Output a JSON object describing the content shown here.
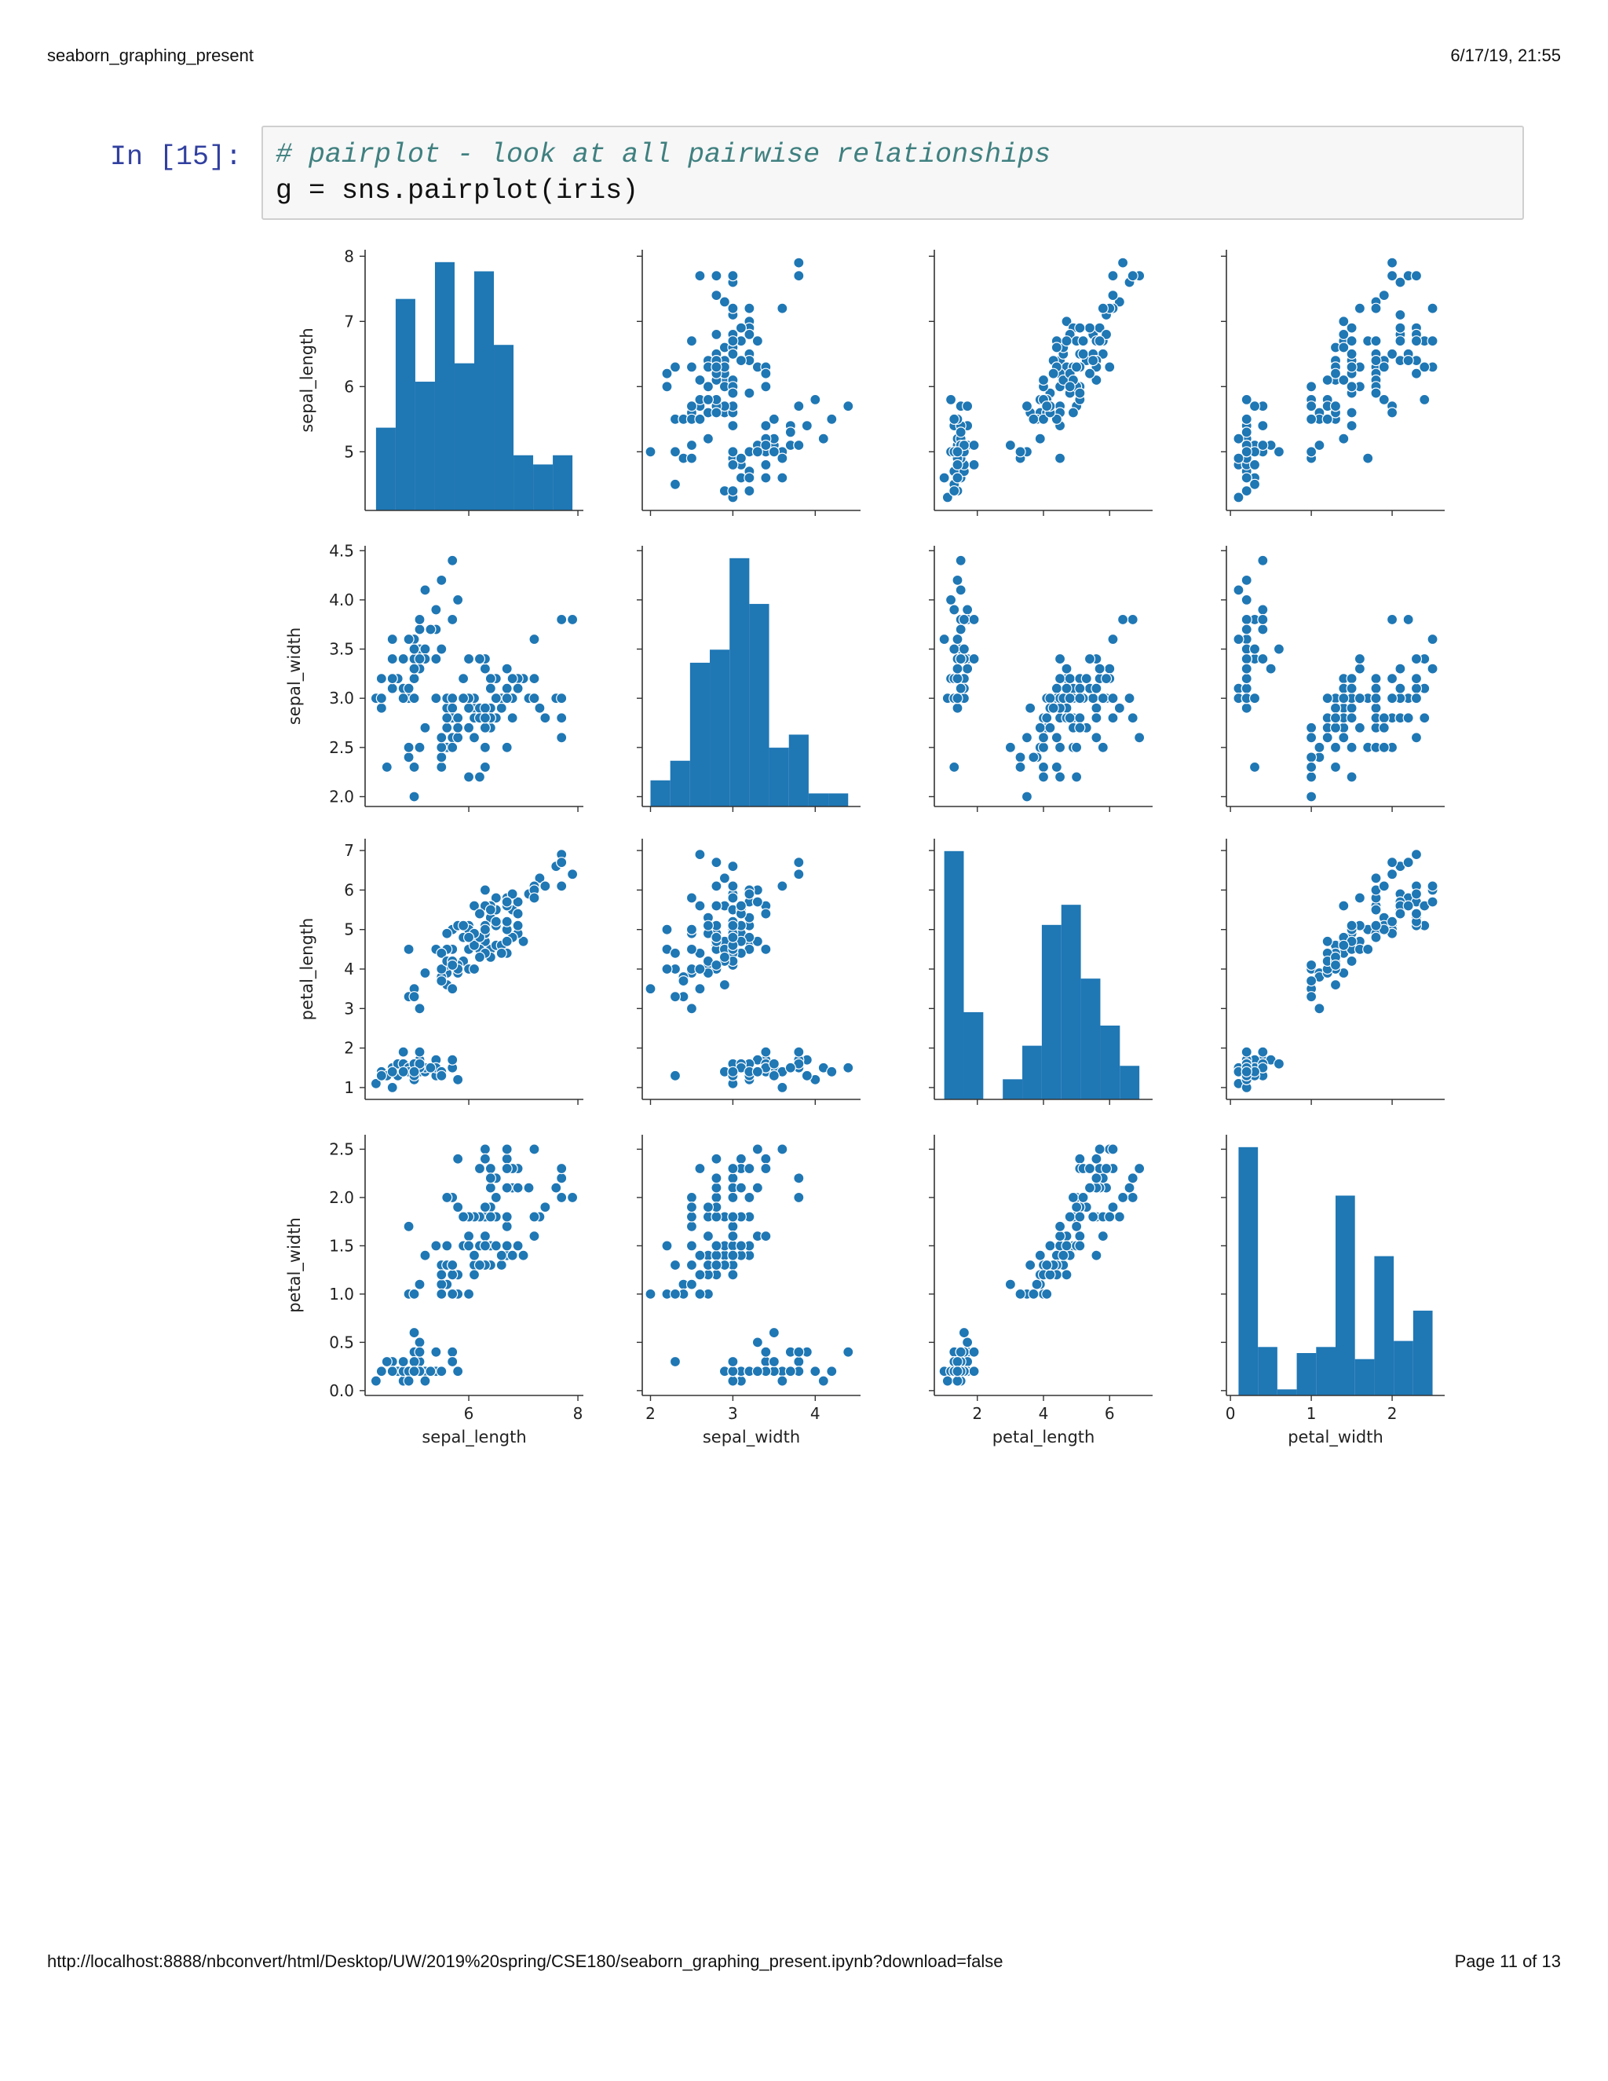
{
  "page": {
    "header_left": "seaborn_graphing_present",
    "header_right": "6/17/19, 21:55",
    "footer_left": "http://localhost:8888/nbconvert/html/Desktop/UW/2019%20spring/CSE180/seaborn_graphing_present.ipynb?download=false",
    "footer_right": "Page 11 of 13"
  },
  "cell": {
    "prompt": "In [15]:",
    "comment": "# pairplot - look at all pairwise relationships",
    "code": "g = sns.pairplot(iris)"
  },
  "colors": {
    "mark": "#1f77b4",
    "axis": "#333333",
    "cell_bg": "#f7f7f7",
    "prompt": "#303f9f",
    "comment": "#408080"
  },
  "chart_data": {
    "type": "scatter",
    "variables": [
      "sepal_length",
      "sepal_width",
      "petal_length",
      "petal_width"
    ],
    "axes": {
      "sepal_length": {
        "range": [
          4.1,
          8.1
        ],
        "ticks": [
          5,
          6,
          7,
          8
        ],
        "tick_labels": [
          "5",
          "6",
          "7",
          "8"
        ]
      },
      "sepal_width": {
        "range": [
          1.9,
          4.55
        ],
        "ticks": [
          2.0,
          2.5,
          3.0,
          3.5,
          4.0,
          4.5
        ],
        "tick_labels": [
          "2.0",
          "2.5",
          "3.0",
          "3.5",
          "4.0",
          "4.5"
        ]
      },
      "petal_length": {
        "range": [
          0.7,
          7.3
        ],
        "ticks": [
          1,
          2,
          3,
          4,
          5,
          6,
          7
        ],
        "tick_labels": [
          "1",
          "2",
          "3",
          "4",
          "5",
          "6",
          "7"
        ]
      },
      "petal_width": {
        "range": [
          -0.05,
          2.65
        ],
        "ticks": [
          0.0,
          0.5,
          1.0,
          1.5,
          2.0,
          2.5
        ],
        "tick_labels": [
          "0.0",
          "0.5",
          "1.0",
          "1.5",
          "2.0",
          "2.5"
        ]
      }
    },
    "x_axes": {
      "sepal_length": {
        "ticks": [
          6,
          8
        ],
        "tick_labels": [
          "6",
          "8"
        ]
      },
      "sepal_width": {
        "ticks": [
          2,
          3,
          4
        ],
        "tick_labels": [
          "2",
          "3",
          "4"
        ]
      },
      "petal_length": {
        "ticks": [
          2,
          4,
          6
        ],
        "tick_labels": [
          "2",
          "4",
          "6"
        ]
      },
      "petal_width": {
        "ticks": [
          0,
          1,
          2
        ],
        "tick_labels": [
          "0",
          "1",
          "2"
        ]
      }
    },
    "histograms": {
      "sepal_length": {
        "edges": [
          4.3,
          4.66,
          5.02,
          5.38,
          5.74,
          6.1,
          6.46,
          6.82,
          7.18,
          7.54,
          7.9
        ],
        "counts": [
          9,
          23,
          14,
          27,
          16,
          26,
          18,
          6,
          5,
          6
        ]
      },
      "sepal_width": {
        "edges": [
          2.0,
          2.24,
          2.48,
          2.72,
          2.96,
          3.2,
          3.44,
          3.68,
          3.92,
          4.16,
          4.4
        ],
        "counts": [
          4,
          7,
          22,
          24,
          38,
          31,
          9,
          11,
          2,
          2
        ]
      },
      "petal_length": {
        "edges": [
          1.0,
          1.59,
          2.18,
          2.77,
          3.36,
          3.95,
          4.54,
          5.13,
          5.72,
          6.31,
          6.9
        ],
        "counts": [
          37,
          13,
          0,
          3,
          8,
          26,
          29,
          18,
          11,
          5
        ]
      },
      "petal_width": {
        "edges": [
          0.1,
          0.34,
          0.58,
          0.82,
          1.06,
          1.3,
          1.54,
          1.78,
          2.02,
          2.26,
          2.5
        ],
        "counts": [
          41,
          8,
          1,
          7,
          8,
          33,
          6,
          23,
          9,
          14
        ]
      }
    },
    "samples": [
      [
        5.1,
        3.5,
        1.4,
        0.2
      ],
      [
        4.9,
        3.0,
        1.4,
        0.2
      ],
      [
        4.7,
        3.2,
        1.3,
        0.2
      ],
      [
        4.6,
        3.1,
        1.5,
        0.2
      ],
      [
        5.0,
        3.6,
        1.4,
        0.2
      ],
      [
        5.4,
        3.9,
        1.7,
        0.4
      ],
      [
        4.6,
        3.4,
        1.4,
        0.3
      ],
      [
        5.0,
        3.4,
        1.5,
        0.2
      ],
      [
        4.4,
        2.9,
        1.4,
        0.2
      ],
      [
        4.9,
        3.1,
        1.5,
        0.1
      ],
      [
        5.4,
        3.7,
        1.5,
        0.2
      ],
      [
        4.8,
        3.4,
        1.6,
        0.2
      ],
      [
        4.8,
        3.0,
        1.4,
        0.1
      ],
      [
        4.3,
        3.0,
        1.1,
        0.1
      ],
      [
        5.8,
        4.0,
        1.2,
        0.2
      ],
      [
        5.7,
        4.4,
        1.5,
        0.4
      ],
      [
        5.4,
        3.9,
        1.3,
        0.4
      ],
      [
        5.1,
        3.5,
        1.4,
        0.3
      ],
      [
        5.7,
        3.8,
        1.7,
        0.3
      ],
      [
        5.1,
        3.8,
        1.5,
        0.3
      ],
      [
        5.4,
        3.4,
        1.7,
        0.2
      ],
      [
        5.1,
        3.7,
        1.5,
        0.4
      ],
      [
        4.6,
        3.6,
        1.0,
        0.2
      ],
      [
        5.1,
        3.3,
        1.7,
        0.5
      ],
      [
        4.8,
        3.4,
        1.9,
        0.2
      ],
      [
        5.0,
        3.0,
        1.6,
        0.2
      ],
      [
        5.0,
        3.4,
        1.6,
        0.4
      ],
      [
        5.2,
        3.5,
        1.5,
        0.2
      ],
      [
        5.2,
        3.4,
        1.4,
        0.2
      ],
      [
        4.7,
        3.2,
        1.6,
        0.2
      ],
      [
        4.8,
        3.1,
        1.6,
        0.2
      ],
      [
        5.4,
        3.4,
        1.5,
        0.4
      ],
      [
        5.2,
        4.1,
        1.5,
        0.1
      ],
      [
        5.5,
        4.2,
        1.4,
        0.2
      ],
      [
        4.9,
        3.1,
        1.5,
        0.2
      ],
      [
        5.0,
        3.2,
        1.2,
        0.2
      ],
      [
        5.5,
        3.5,
        1.3,
        0.2
      ],
      [
        4.9,
        3.6,
        1.4,
        0.1
      ],
      [
        4.4,
        3.0,
        1.3,
        0.2
      ],
      [
        5.1,
        3.4,
        1.5,
        0.2
      ],
      [
        5.0,
        3.5,
        1.3,
        0.3
      ],
      [
        4.5,
        2.3,
        1.3,
        0.3
      ],
      [
        4.4,
        3.2,
        1.3,
        0.2
      ],
      [
        5.0,
        3.5,
        1.6,
        0.6
      ],
      [
        5.1,
        3.8,
        1.9,
        0.4
      ],
      [
        4.8,
        3.0,
        1.4,
        0.3
      ],
      [
        5.1,
        3.8,
        1.6,
        0.2
      ],
      [
        4.6,
        3.2,
        1.4,
        0.2
      ],
      [
        5.3,
        3.7,
        1.5,
        0.2
      ],
      [
        5.0,
        3.3,
        1.4,
        0.2
      ],
      [
        7.0,
        3.2,
        4.7,
        1.4
      ],
      [
        6.4,
        3.2,
        4.5,
        1.5
      ],
      [
        6.9,
        3.1,
        4.9,
        1.5
      ],
      [
        5.5,
        2.3,
        4.0,
        1.3
      ],
      [
        6.5,
        2.8,
        4.6,
        1.5
      ],
      [
        5.7,
        2.8,
        4.5,
        1.3
      ],
      [
        6.3,
        3.3,
        4.7,
        1.6
      ],
      [
        4.9,
        2.4,
        3.3,
        1.0
      ],
      [
        6.6,
        2.9,
        4.6,
        1.3
      ],
      [
        5.2,
        2.7,
        3.9,
        1.4
      ],
      [
        5.0,
        2.0,
        3.5,
        1.0
      ],
      [
        5.9,
        3.0,
        4.2,
        1.5
      ],
      [
        6.0,
        2.2,
        4.0,
        1.0
      ],
      [
        6.1,
        2.9,
        4.7,
        1.4
      ],
      [
        5.6,
        2.9,
        3.6,
        1.3
      ],
      [
        6.7,
        3.1,
        4.4,
        1.4
      ],
      [
        5.6,
        3.0,
        4.5,
        1.5
      ],
      [
        5.8,
        2.7,
        4.1,
        1.0
      ],
      [
        6.2,
        2.2,
        4.5,
        1.5
      ],
      [
        5.6,
        2.5,
        3.9,
        1.1
      ],
      [
        5.9,
        3.2,
        4.8,
        1.8
      ],
      [
        6.1,
        2.8,
        4.0,
        1.3
      ],
      [
        6.3,
        2.5,
        4.9,
        1.5
      ],
      [
        6.1,
        2.8,
        4.7,
        1.2
      ],
      [
        6.4,
        2.9,
        4.3,
        1.3
      ],
      [
        6.6,
        3.0,
        4.4,
        1.4
      ],
      [
        6.8,
        2.8,
        4.8,
        1.4
      ],
      [
        6.7,
        3.0,
        5.0,
        1.7
      ],
      [
        6.0,
        2.9,
        4.5,
        1.5
      ],
      [
        5.7,
        2.6,
        3.5,
        1.0
      ],
      [
        5.5,
        2.4,
        3.8,
        1.1
      ],
      [
        5.5,
        2.4,
        3.7,
        1.0
      ],
      [
        5.8,
        2.7,
        3.9,
        1.2
      ],
      [
        6.0,
        2.7,
        5.1,
        1.6
      ],
      [
        5.4,
        3.0,
        4.5,
        1.5
      ],
      [
        6.0,
        3.4,
        4.5,
        1.6
      ],
      [
        6.7,
        3.1,
        4.7,
        1.5
      ],
      [
        6.3,
        2.3,
        4.4,
        1.3
      ],
      [
        5.6,
        3.0,
        4.1,
        1.3
      ],
      [
        5.5,
        2.5,
        4.0,
        1.3
      ],
      [
        5.5,
        2.6,
        4.4,
        1.2
      ],
      [
        6.1,
        3.0,
        4.6,
        1.4
      ],
      [
        5.8,
        2.6,
        4.0,
        1.2
      ],
      [
        5.0,
        2.3,
        3.3,
        1.0
      ],
      [
        5.6,
        2.7,
        4.2,
        1.3
      ],
      [
        5.7,
        3.0,
        4.2,
        1.2
      ],
      [
        5.7,
        2.9,
        4.2,
        1.3
      ],
      [
        6.2,
        2.9,
        4.3,
        1.3
      ],
      [
        5.1,
        2.5,
        3.0,
        1.1
      ],
      [
        5.7,
        2.8,
        4.1,
        1.3
      ],
      [
        6.3,
        3.3,
        6.0,
        2.5
      ],
      [
        5.8,
        2.7,
        5.1,
        1.9
      ],
      [
        7.1,
        3.0,
        5.9,
        2.1
      ],
      [
        6.3,
        2.9,
        5.6,
        1.8
      ],
      [
        6.5,
        3.0,
        5.8,
        2.2
      ],
      [
        7.6,
        3.0,
        6.6,
        2.1
      ],
      [
        4.9,
        2.5,
        4.5,
        1.7
      ],
      [
        7.3,
        2.9,
        6.3,
        1.8
      ],
      [
        6.7,
        2.5,
        5.8,
        1.8
      ],
      [
        7.2,
        3.6,
        6.1,
        2.5
      ],
      [
        6.5,
        3.2,
        5.1,
        2.0
      ],
      [
        6.4,
        2.7,
        5.3,
        1.9
      ],
      [
        6.8,
        3.0,
        5.5,
        2.1
      ],
      [
        5.7,
        2.5,
        5.0,
        2.0
      ],
      [
        5.8,
        2.8,
        5.1,
        2.4
      ],
      [
        6.4,
        3.2,
        5.3,
        2.3
      ],
      [
        6.5,
        3.0,
        5.5,
        1.8
      ],
      [
        7.7,
        3.8,
        6.7,
        2.2
      ],
      [
        7.7,
        2.6,
        6.9,
        2.3
      ],
      [
        6.0,
        2.2,
        5.0,
        1.5
      ],
      [
        6.9,
        3.2,
        5.7,
        2.3
      ],
      [
        5.6,
        2.8,
        4.9,
        2.0
      ],
      [
        7.7,
        2.8,
        6.7,
        2.0
      ],
      [
        6.3,
        2.7,
        4.9,
        1.8
      ],
      [
        6.7,
        3.3,
        5.7,
        2.1
      ],
      [
        7.2,
        3.2,
        6.0,
        1.8
      ],
      [
        6.2,
        2.8,
        4.8,
        1.8
      ],
      [
        6.1,
        3.0,
        4.9,
        1.8
      ],
      [
        6.4,
        2.8,
        5.6,
        2.1
      ],
      [
        7.2,
        3.0,
        5.8,
        1.6
      ],
      [
        7.4,
        2.8,
        6.1,
        1.9
      ],
      [
        7.9,
        3.8,
        6.4,
        2.0
      ],
      [
        6.4,
        2.8,
        5.6,
        2.2
      ],
      [
        6.3,
        2.8,
        5.1,
        1.5
      ],
      [
        6.1,
        2.6,
        5.6,
        1.4
      ],
      [
        7.7,
        3.0,
        6.1,
        2.3
      ],
      [
        6.3,
        3.4,
        5.6,
        2.4
      ],
      [
        6.4,
        3.1,
        5.5,
        1.8
      ],
      [
        6.0,
        3.0,
        4.8,
        1.8
      ],
      [
        6.9,
        3.1,
        5.4,
        2.1
      ],
      [
        6.7,
        3.1,
        5.6,
        2.4
      ],
      [
        6.9,
        3.1,
        5.1,
        2.3
      ],
      [
        5.8,
        2.7,
        5.1,
        1.9
      ],
      [
        6.8,
        3.2,
        5.9,
        2.3
      ],
      [
        6.7,
        3.3,
        5.7,
        2.5
      ],
      [
        6.7,
        3.0,
        5.2,
        2.3
      ],
      [
        6.3,
        2.5,
        5.0,
        1.9
      ],
      [
        6.5,
        3.0,
        5.2,
        2.0
      ],
      [
        6.2,
        3.4,
        5.4,
        2.3
      ],
      [
        5.9,
        3.0,
        5.1,
        1.8
      ]
    ]
  }
}
